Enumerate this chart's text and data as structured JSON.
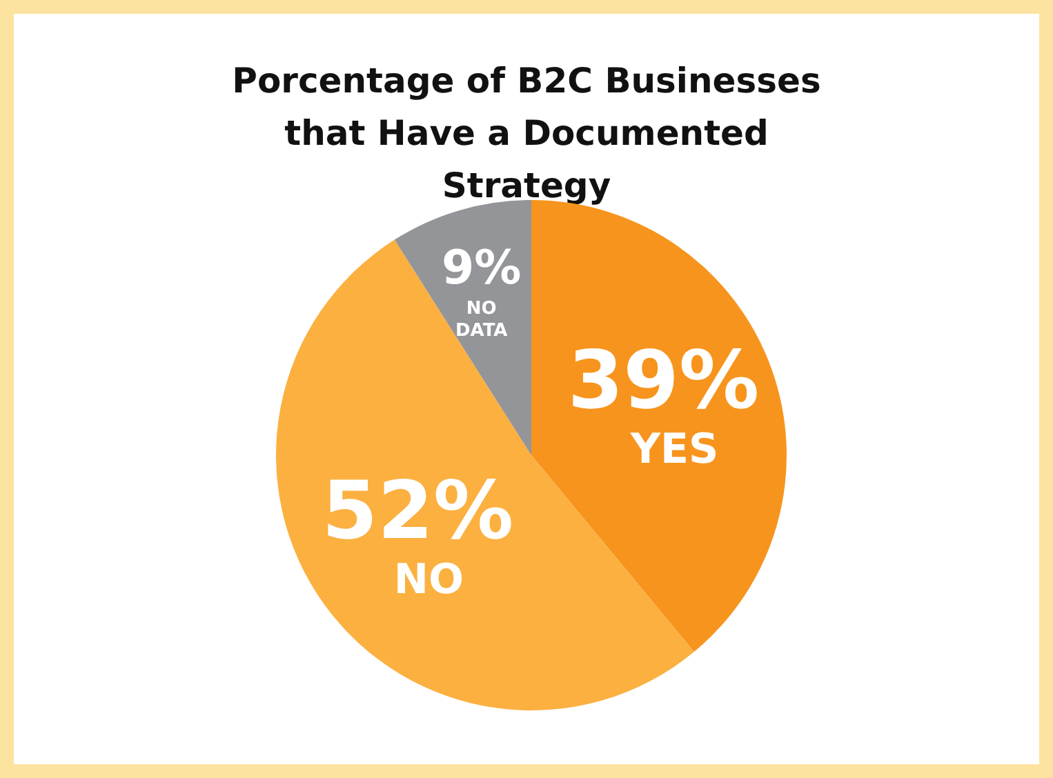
{
  "chart_data": {
    "type": "pie",
    "title": "Porcentage of B2C Businesses that Have a Documented Strategy",
    "categories": [
      "YES",
      "NO",
      "NO DATA"
    ],
    "values": [
      39,
      52,
      9
    ],
    "value_labels": [
      "39%",
      "52%",
      "9%"
    ],
    "colors": [
      "#f7941d",
      "#fbb040",
      "#939598"
    ],
    "legend": false
  }
}
